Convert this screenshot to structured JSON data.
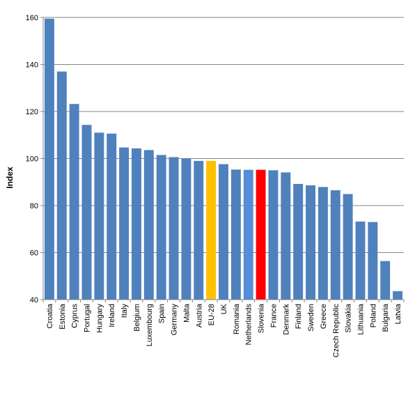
{
  "chart_data": {
    "type": "bar",
    "title": "",
    "xlabel": "",
    "ylabel": "Index",
    "ylim": [
      40,
      160
    ],
    "yticks": [
      40,
      60,
      80,
      100,
      120,
      140,
      160
    ],
    "grid": true,
    "legend": "none",
    "categories": [
      "Croatia",
      "Estonia",
      "Cyprus",
      "Portugal",
      "Hungary",
      "Ireland",
      "Italy",
      "Belgium",
      "Luxembourg",
      "Spain",
      "Germany",
      "Malta",
      "Austria",
      "EU-28",
      "UK",
      "Romania",
      "Netherlands",
      "Slovenia",
      "France",
      "Denmark",
      "Finland",
      "Sweden",
      "Greece",
      "Czech Republic",
      "Slovakia",
      "Lithuania",
      "Poland",
      "Bulgaria",
      "Latvia"
    ],
    "values": [
      159.5,
      137,
      123.2,
      114.3,
      111,
      110.6,
      104.7,
      104.3,
      103.6,
      101.5,
      100.6,
      100,
      99,
      99,
      97.6,
      95.3,
      95.2,
      95.2,
      95,
      94.1,
      89.2,
      88.6,
      87.9,
      86.5,
      84.9,
      73.2,
      73,
      56.4,
      43.6
    ],
    "colors": {
      "default": "#4f81bd",
      "highlight": {
        "EU-28": "#ffc000",
        "Netherlands": "#558ed5",
        "Slovenia": "#ff0000"
      }
    }
  }
}
